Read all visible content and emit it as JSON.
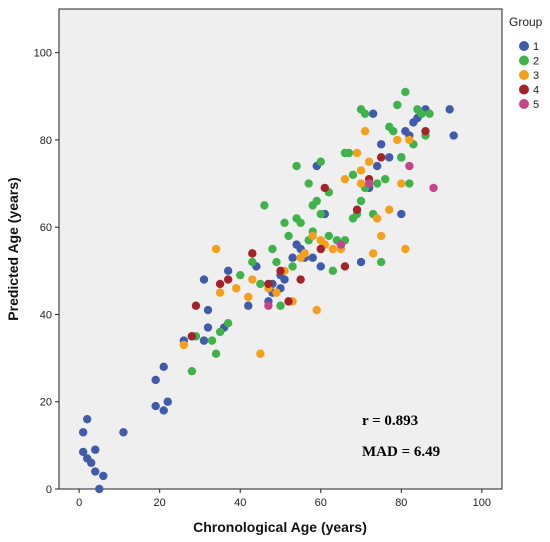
{
  "chart_data": {
    "type": "scatter",
    "xlabel": "Chronological Age (years)",
    "ylabel": "Predicted Age (years)",
    "xlim": [
      -5,
      105
    ],
    "ylim": [
      0,
      110
    ],
    "x_ticks": [
      0,
      20,
      40,
      60,
      80,
      100
    ],
    "y_ticks": [
      0,
      20,
      40,
      60,
      80,
      100
    ],
    "grid": false,
    "legend_position": "right",
    "legend_title": "Group",
    "annotations": {
      "r": "r = 0.893",
      "mad": "MAD = 6.49"
    },
    "series": [
      {
        "name": "1",
        "color": "#3f5ba9",
        "points": [
          [
            1,
            13
          ],
          [
            1,
            8.5
          ],
          [
            2,
            16
          ],
          [
            2,
            7
          ],
          [
            3,
            6
          ],
          [
            4,
            9
          ],
          [
            4,
            4
          ],
          [
            5,
            0
          ],
          [
            6,
            3
          ],
          [
            11,
            13
          ],
          [
            19,
            25
          ],
          [
            19,
            19
          ],
          [
            21,
            18
          ],
          [
            21,
            28
          ],
          [
            22,
            20
          ],
          [
            26,
            34
          ],
          [
            28,
            35
          ],
          [
            31,
            34
          ],
          [
            31,
            48
          ],
          [
            32,
            41
          ],
          [
            32,
            37
          ],
          [
            36,
            37
          ],
          [
            37,
            50
          ],
          [
            42,
            42
          ],
          [
            44,
            51
          ],
          [
            47,
            43
          ],
          [
            48,
            45
          ],
          [
            48,
            47
          ],
          [
            50,
            46
          ],
          [
            50,
            49
          ],
          [
            51,
            48
          ],
          [
            53,
            53
          ],
          [
            54,
            56
          ],
          [
            55,
            55
          ],
          [
            56,
            53
          ],
          [
            58,
            53
          ],
          [
            59,
            74
          ],
          [
            60,
            51
          ],
          [
            61,
            63
          ],
          [
            65,
            56
          ],
          [
            70,
            52
          ],
          [
            72,
            69
          ],
          [
            73,
            86
          ],
          [
            74,
            74
          ],
          [
            75,
            79
          ],
          [
            77,
            76
          ],
          [
            80,
            76
          ],
          [
            80,
            63
          ],
          [
            81,
            82
          ],
          [
            82,
            81
          ],
          [
            83,
            84
          ],
          [
            84,
            85
          ],
          [
            85,
            86
          ],
          [
            86,
            87
          ],
          [
            92,
            87
          ],
          [
            93,
            81
          ]
        ]
      },
      {
        "name": "2",
        "color": "#3fb34a",
        "points": [
          [
            28,
            27
          ],
          [
            29,
            35
          ],
          [
            33,
            34
          ],
          [
            35,
            36
          ],
          [
            37,
            38
          ],
          [
            40,
            49
          ],
          [
            43,
            52
          ],
          [
            46,
            65
          ],
          [
            48,
            55
          ],
          [
            49,
            52
          ],
          [
            50,
            42
          ],
          [
            51,
            61
          ],
          [
            52,
            58
          ],
          [
            53,
            51
          ],
          [
            54,
            74
          ],
          [
            54,
            62
          ],
          [
            55,
            61
          ],
          [
            57,
            57
          ],
          [
            57,
            70
          ],
          [
            58,
            59
          ],
          [
            58,
            65
          ],
          [
            59,
            66
          ],
          [
            60,
            63
          ],
          [
            60,
            75
          ],
          [
            62,
            58
          ],
          [
            62,
            68
          ],
          [
            63,
            50
          ],
          [
            64,
            57
          ],
          [
            66,
            77
          ],
          [
            66,
            57
          ],
          [
            67,
            77
          ],
          [
            68,
            62
          ],
          [
            68,
            72
          ],
          [
            69,
            63
          ],
          [
            70,
            66
          ],
          [
            70,
            87
          ],
          [
            71,
            69
          ],
          [
            71,
            86
          ],
          [
            73,
            63
          ],
          [
            74,
            70
          ],
          [
            75,
            52
          ],
          [
            76,
            71
          ],
          [
            77,
            83
          ],
          [
            78,
            82
          ],
          [
            79,
            88
          ],
          [
            80,
            76
          ],
          [
            81,
            91
          ],
          [
            82,
            70
          ],
          [
            83,
            79
          ],
          [
            84,
            87
          ],
          [
            85,
            86
          ],
          [
            86,
            81
          ],
          [
            87,
            86
          ],
          [
            34,
            31
          ],
          [
            45,
            47
          ]
        ]
      },
      {
        "name": "3",
        "color": "#f5a01b",
        "points": [
          [
            26,
            33
          ],
          [
            34,
            55
          ],
          [
            35,
            45
          ],
          [
            39,
            46
          ],
          [
            42,
            44
          ],
          [
            43,
            48
          ],
          [
            45,
            31
          ],
          [
            47,
            46
          ],
          [
            49,
            45
          ],
          [
            51,
            50
          ],
          [
            53,
            43
          ],
          [
            55,
            53
          ],
          [
            56,
            54
          ],
          [
            58,
            58
          ],
          [
            59,
            41
          ],
          [
            60,
            57
          ],
          [
            61,
            56
          ],
          [
            63,
            55
          ],
          [
            65,
            55
          ],
          [
            66,
            71
          ],
          [
            69,
            77
          ],
          [
            70,
            70
          ],
          [
            70,
            73
          ],
          [
            71,
            82
          ],
          [
            72,
            75
          ],
          [
            73,
            54
          ],
          [
            74,
            62
          ],
          [
            75,
            58
          ],
          [
            77,
            64
          ],
          [
            79,
            80
          ],
          [
            80,
            70
          ],
          [
            81,
            55
          ],
          [
            82,
            80
          ]
        ]
      },
      {
        "name": "4",
        "color": "#a3232a",
        "points": [
          [
            28,
            35
          ],
          [
            29,
            42
          ],
          [
            35,
            47
          ],
          [
            37,
            48
          ],
          [
            43,
            54
          ],
          [
            47,
            47
          ],
          [
            50,
            50
          ],
          [
            52,
            43
          ],
          [
            55,
            48
          ],
          [
            60,
            55
          ],
          [
            61,
            69
          ],
          [
            66,
            51
          ],
          [
            69,
            64
          ],
          [
            72,
            71
          ],
          [
            75,
            76
          ],
          [
            86,
            82
          ]
        ]
      },
      {
        "name": "5",
        "color": "#c4458a",
        "points": [
          [
            47,
            42
          ],
          [
            65,
            56
          ],
          [
            72,
            70
          ],
          [
            82,
            74
          ],
          [
            88,
            69
          ]
        ]
      }
    ]
  }
}
